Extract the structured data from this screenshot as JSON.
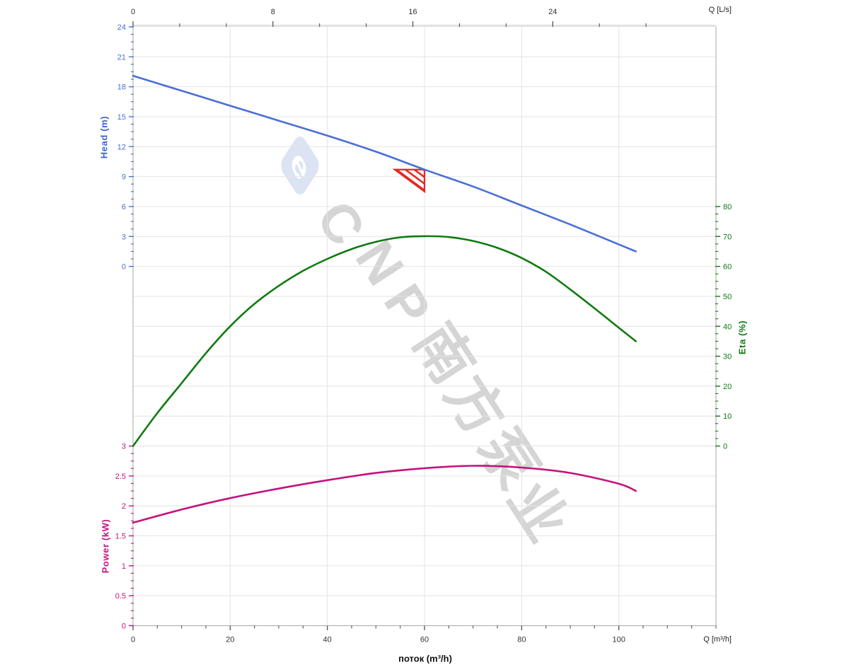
{
  "axis_titles": {
    "head": "Head (m)",
    "eta": "Eta (%)",
    "power": "Power (kW)",
    "flow": "поток (m³/h)"
  },
  "units": {
    "top": "Q [L/s]",
    "bottom": "Q [m³/h]"
  },
  "watermark": {
    "logo_glyph": "e",
    "text": "CNP南方泵业"
  },
  "colors": {
    "head": "#4a6fd6",
    "eta": "#117a11",
    "power": "#c41380",
    "duty_marker": "#e02a22",
    "grid": "#e4e4e4",
    "axis_line": "#b4b4b4",
    "flow_text": "#333333"
  },
  "chart_data": {
    "type": "line",
    "title": "",
    "x_bottom": {
      "unit": "Q [m³/h]",
      "range": [
        0,
        120
      ],
      "major_ticks": [
        0,
        20,
        40,
        60,
        80,
        100
      ],
      "minor_step": 5,
      "grid": true
    },
    "x_top": {
      "unit": "Q [L/s]",
      "range": [
        0,
        33.33
      ],
      "major_ticks": [
        0,
        8,
        16,
        24
      ],
      "minor_step": 2.6667,
      "ls_to_m3h": 3.6
    },
    "y_head": {
      "label": "Head (m)",
      "range": [
        0,
        24
      ],
      "major_ticks": [
        24,
        21,
        18,
        15,
        12,
        9,
        6,
        3,
        0
      ],
      "minor_step": 0.75,
      "grid": true
    },
    "y_eta": {
      "label": "Eta (%)",
      "range": [
        0,
        80
      ],
      "major_ticks": [
        80,
        70,
        60,
        50,
        40,
        30,
        20,
        10,
        0
      ],
      "minor_step": 2.5
    },
    "y_power": {
      "label": "Power (kW)",
      "range": [
        0,
        3
      ],
      "major_ticks": [
        "3",
        "2.5",
        "2",
        "1.5",
        "1",
        "0.5",
        "0"
      ],
      "minor_step": 0.125
    },
    "series": [
      {
        "name": "head",
        "axis": "head",
        "color": "#4a6fd6",
        "x": [
          0,
          10,
          20,
          30,
          40,
          50,
          60,
          70,
          80,
          90,
          100,
          103.5
        ],
        "y": [
          19.1,
          17.6,
          16.1,
          14.6,
          13.1,
          11.5,
          9.7,
          8.0,
          6.1,
          4.2,
          2.2,
          1.5
        ]
      },
      {
        "name": "eta",
        "axis": "eta",
        "color": "#117a11",
        "x": [
          0,
          5,
          10,
          15,
          20,
          25,
          30,
          35,
          40,
          45,
          50,
          55,
          60,
          65,
          70,
          75,
          80,
          85,
          90,
          95,
          100,
          103.5
        ],
        "y": [
          0,
          11,
          21,
          31,
          40,
          47.5,
          53.5,
          58.5,
          62.5,
          65.8,
          68.2,
          69.7,
          70.1,
          69.8,
          68.5,
          66.2,
          62.8,
          58.2,
          52.3,
          46,
          39.5,
          35
        ]
      },
      {
        "name": "power",
        "axis": "power",
        "color": "#c41380",
        "x": [
          0,
          10,
          20,
          30,
          40,
          50,
          60,
          70,
          80,
          90,
          100,
          103.5
        ],
        "y": [
          1.72,
          1.94,
          2.13,
          2.29,
          2.43,
          2.55,
          2.63,
          2.67,
          2.64,
          2.55,
          2.37,
          2.25
        ]
      }
    ],
    "duty_point": {
      "q_m3h": 60,
      "head_m": 9.7
    }
  }
}
